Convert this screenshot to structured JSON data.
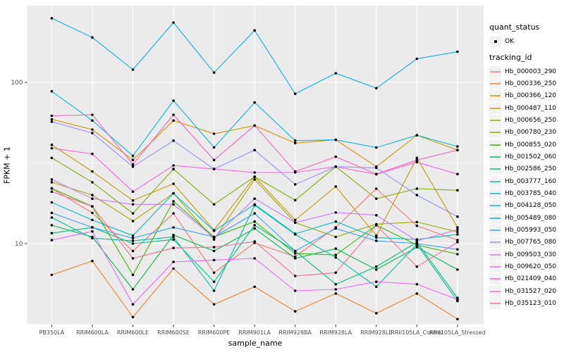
{
  "chart_data": {
    "type": "line",
    "title": "",
    "xlabel": "sample_name",
    "ylabel": "FPKM + 1",
    "y_scale": "log10",
    "ylim": [
      3.1,
      300
    ],
    "y_major_ticks": [
      10,
      100
    ],
    "y_minor_ticks": [
      3.1623,
      31.623
    ],
    "grid": "white-on-grey",
    "legend_position": "right",
    "panel_bg": "#EBEBEB",
    "grid_color": "#FFFFFF",
    "point_color": "#000000",
    "axis_text_color": "#4D4D4D",
    "categories": [
      "PB350LA",
      "RRIM600LA",
      "RRIM600LE",
      "RRIM600SE",
      "RRIM600PE",
      "RRIM901LA",
      "RRIM928BA",
      "RRIM928LA",
      "RRIM928LE",
      "RRII105LA_Control",
      "RRII105LA_Stressed"
    ],
    "series": [
      {
        "name": "Hb_000003_290",
        "color": "#F8766D",
        "values": [
          22,
          15.5,
          9,
          15.4,
          6.6,
          10.1,
          8.3,
          12.6,
          21.9,
          12.9,
          10.5
        ]
      },
      {
        "name": "Hb_000336_250",
        "color": "#EA8331",
        "values": [
          6.4,
          7.8,
          3.5,
          7.0,
          4.2,
          5.4,
          3.8,
          4.9,
          3.7,
          4.9,
          3.4
        ]
      },
      {
        "name": "Hb_000366_120",
        "color": "#D89000",
        "values": [
          59,
          51,
          33,
          58,
          48,
          54,
          42,
          44,
          30,
          47,
          38
        ]
      },
      {
        "name": "Hb_000487_110",
        "color": "#C09B00",
        "values": [
          41,
          28,
          18.5,
          23.5,
          12.1,
          26,
          14,
          22.6,
          11.2,
          34,
          12.6
        ]
      },
      {
        "name": "Hb_000656_250",
        "color": "#A3A500",
        "values": [
          24,
          20,
          13.8,
          20.5,
          10.6,
          25,
          13.5,
          11,
          13.2,
          13.6,
          11.8
        ]
      },
      {
        "name": "Hb_000780_230",
        "color": "#7CAE00",
        "values": [
          34,
          24,
          15.4,
          29,
          17.5,
          26,
          18.6,
          30,
          19,
          21.9,
          21.4
        ]
      },
      {
        "name": "Hb_000855_020",
        "color": "#39B600",
        "values": [
          22,
          17,
          6.4,
          18.3,
          11,
          13.7,
          8.7,
          8.5,
          13,
          9.8,
          8.6
        ]
      },
      {
        "name": "Hb_001502_060",
        "color": "#00BB4E",
        "values": [
          13,
          11,
          5.2,
          11.3,
          9,
          12.4,
          8.1,
          9.3,
          6.9,
          9.5,
          6.9
        ]
      },
      {
        "name": "Hb_002586_250",
        "color": "#00BF7D",
        "values": [
          11.6,
          12.6,
          10,
          10.6,
          5.8,
          13,
          9,
          5.6,
          7.2,
          10.2,
          4.6
        ]
      },
      {
        "name": "Hb_003777_160",
        "color": "#00C1A3",
        "values": [
          14.5,
          10.8,
          10.4,
          11,
          5.1,
          17.3,
          11.4,
          8.2,
          5.4,
          9.9,
          4.4
        ]
      },
      {
        "name": "Hb_003785_040",
        "color": "#00BFC4",
        "values": [
          18,
          14,
          11.2,
          20.5,
          12,
          17.5,
          11.5,
          13.7,
          10.9,
          10.6,
          11.4
        ]
      },
      {
        "name": "Hb_004128_050",
        "color": "#00BAE0",
        "values": [
          88,
          58,
          35,
          77,
          39.5,
          75,
          43.5,
          44,
          39.4,
          47,
          40
        ]
      },
      {
        "name": "Hb_005489_080",
        "color": "#00B0F6",
        "values": [
          250,
          190,
          120,
          235,
          115,
          210,
          85,
          114,
          92,
          140,
          155
        ]
      },
      {
        "name": "Hb_005993_050",
        "color": "#35A2FF",
        "values": [
          15.5,
          12.6,
          10.8,
          12.6,
          11,
          15.4,
          9,
          12.4,
          10.4,
          10,
          9.2
        ]
      },
      {
        "name": "Hb_007765_080",
        "color": "#9590FF",
        "values": [
          57,
          48.5,
          30,
          43.5,
          29,
          38,
          23.3,
          30,
          29.5,
          20,
          14.7
        ]
      },
      {
        "name": "Hb_009503_030",
        "color": "#C77CFF",
        "values": [
          25,
          19,
          17.5,
          17.5,
          10.9,
          19,
          13.5,
          15.6,
          15,
          10.4,
          12.2
        ]
      },
      {
        "name": "Hb_009620_050",
        "color": "#E76BF3",
        "values": [
          10.5,
          11.9,
          4.2,
          7.7,
          7.9,
          8.1,
          5.1,
          5.2,
          5.8,
          5.6,
          4.5
        ]
      },
      {
        "name": "Hb_021409_040",
        "color": "#FA62DB",
        "values": [
          39,
          36,
          21,
          30.5,
          29,
          27.6,
          27.6,
          30,
          26.9,
          32,
          27
        ]
      },
      {
        "name": "Hb_031527_020",
        "color": "#FF62BC",
        "values": [
          62,
          63,
          31,
          63,
          33,
          54,
          28,
          34.6,
          27,
          33,
          38
        ]
      },
      {
        "name": "Hb_035123_010",
        "color": "#FF6A98",
        "values": [
          21,
          17,
          8.1,
          9.4,
          9.5,
          10.3,
          6.3,
          6.6,
          13,
          7.2,
          10.2
        ]
      }
    ],
    "legends": {
      "quant_status": {
        "title": "quant_status",
        "items": [
          {
            "label": "OK",
            "marker": "black-point"
          }
        ]
      },
      "tracking_id": {
        "title": "tracking_id"
      }
    }
  }
}
